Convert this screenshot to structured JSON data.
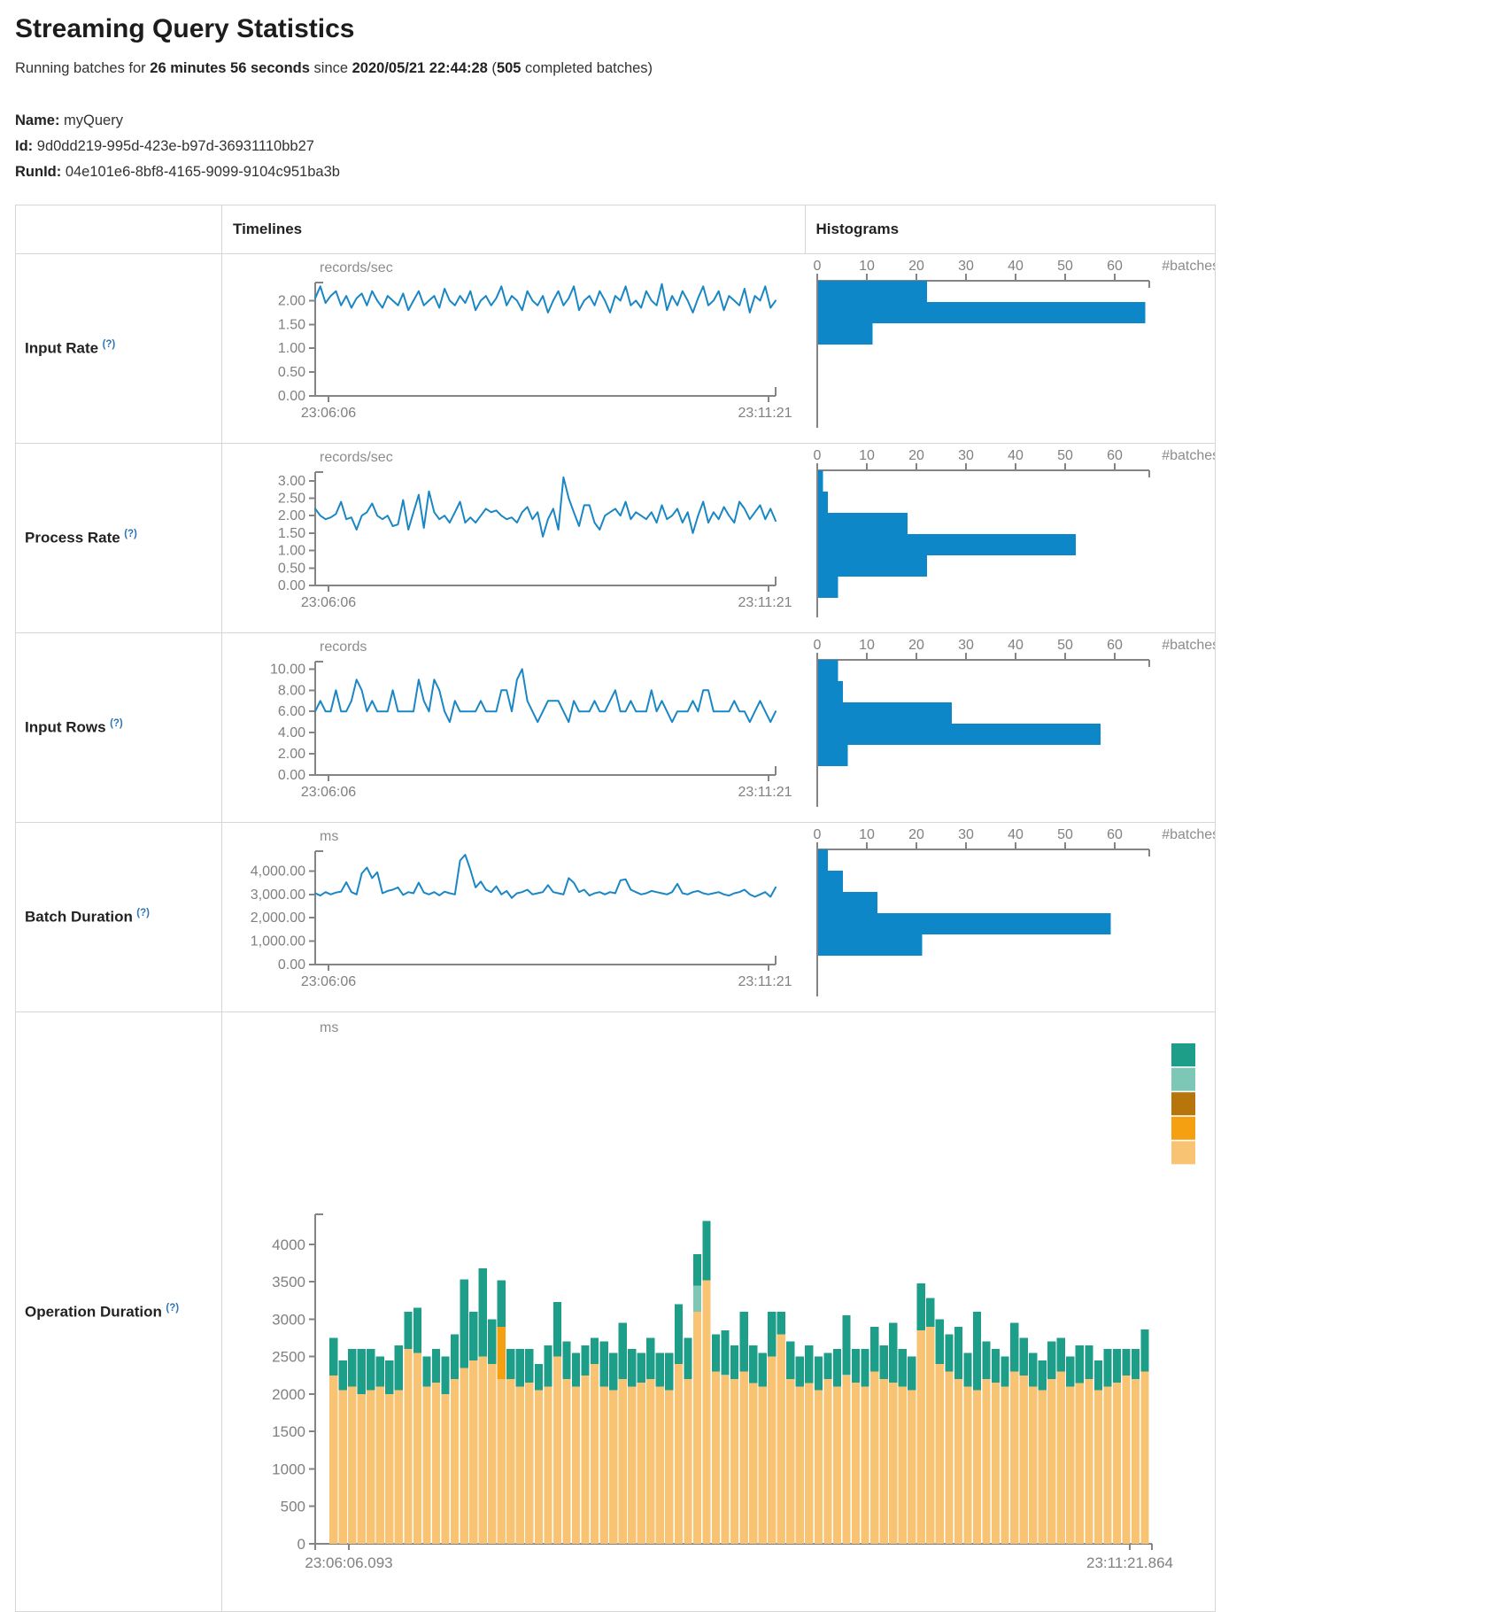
{
  "page": {
    "title": "Streaming Query Statistics",
    "subtitle": {
      "prefix": "Running batches for ",
      "duration": "26 minutes 56 seconds",
      "mid": " since ",
      "timestamp": "2020/05/21 22:44:28",
      "paren": " (",
      "batches": "505",
      "suffix": " completed batches)"
    }
  },
  "query": {
    "name_label": "Name:",
    "name": "myQuery",
    "id_label": "Id:",
    "id": "9d0dd219-995d-423e-b97d-36931110bb27",
    "runid_label": "RunId:",
    "runid": "04e101e6-8bf8-4165-9099-9104c951ba3b"
  },
  "ui": {
    "help_marker": "(?)"
  },
  "table": {
    "timelines_header": "Timelines",
    "histograms_header": "Histograms",
    "rows": [
      {
        "key": "input-rate",
        "label": "Input Rate",
        "wide": false,
        "timeline": "input_rate_timeline",
        "histogram": "input_rate_histogram"
      },
      {
        "key": "process-rate",
        "label": "Process Rate",
        "wide": false,
        "timeline": "process_rate_timeline",
        "histogram": "process_rate_histogram"
      },
      {
        "key": "input-rows",
        "label": "Input Rows",
        "wide": false,
        "timeline": "input_rows_timeline",
        "histogram": "input_rows_histogram"
      },
      {
        "key": "batch-duration",
        "label": "Batch Duration",
        "wide": false,
        "timeline": "batch_duration_timeline",
        "histogram": "batch_duration_histogram"
      },
      {
        "key": "operation-duration",
        "label": "Operation Duration",
        "wide": true,
        "chart": "operation_duration"
      }
    ]
  },
  "colors": {
    "line_blue": "#1a87c4",
    "hist_blue": "#0e87c8",
    "axis": "#848484",
    "tick_text": "#808080",
    "unit_text": "#8c8c8c",
    "border": "#d6d6d6",
    "teal": "#1d9e89",
    "light_teal": "#7cc7b6",
    "brown": "#b8750c",
    "orange": "#f5a011",
    "tan": "#f8c373"
  },
  "chart_data": {
    "input_rate_timeline": {
      "type": "line",
      "unit": "records/sec",
      "x_start": "23:06:06",
      "x_end": "23:11:21",
      "ymax": 2.38,
      "y_ticks": [
        {
          "label": "0.00",
          "v": 0
        },
        {
          "label": "0.50",
          "v": 0.5
        },
        {
          "label": "1.00",
          "v": 1
        },
        {
          "label": "1.50",
          "v": 1.5
        },
        {
          "label": "2.00",
          "v": 2
        }
      ],
      "values": [
        2.05,
        2.3,
        1.95,
        2.1,
        2.2,
        1.9,
        2.1,
        1.85,
        2.05,
        2.15,
        1.9,
        2.2,
        2.0,
        1.85,
        2.1,
        2.0,
        1.9,
        2.15,
        1.8,
        2.0,
        2.2,
        1.9,
        2.0,
        2.1,
        1.85,
        2.25,
        2.0,
        1.9,
        2.1,
        1.95,
        2.2,
        1.8,
        2.0,
        2.1,
        1.9,
        2.05,
        2.3,
        1.9,
        2.1,
        2.0,
        1.8,
        2.2,
        2.0,
        1.9,
        2.1,
        1.75,
        2.0,
        2.2,
        1.9,
        2.05,
        2.3,
        1.8,
        2.0,
        2.1,
        1.9,
        2.2,
        2.0,
        1.75,
        2.1,
        2.0,
        2.3,
        1.9,
        2.0,
        1.85,
        2.2,
        2.0,
        1.9,
        2.35,
        1.8,
        2.1,
        1.9,
        2.2,
        2.0,
        1.75,
        2.05,
        2.3,
        1.9,
        2.0,
        2.2,
        1.8,
        2.1,
        2.0,
        1.9,
        2.25,
        1.75,
        2.1,
        2.0,
        2.3,
        1.85,
        2.0
      ]
    },
    "input_rate_histogram": {
      "type": "bar",
      "end_label": "#batches",
      "axis_end": 67,
      "x_ticks": [
        {
          "label": "0",
          "v": 0
        },
        {
          "label": "10",
          "v": 10
        },
        {
          "label": "20",
          "v": 20
        },
        {
          "label": "30",
          "v": 30
        },
        {
          "label": "40",
          "v": 40
        },
        {
          "label": "50",
          "v": 50
        },
        {
          "label": "60",
          "v": 60
        }
      ],
      "values": [
        22,
        66,
        11
      ]
    },
    "process_rate_timeline": {
      "type": "line",
      "unit": "records/sec",
      "x_start": "23:06:06",
      "x_end": "23:11:21",
      "ymax": 3.25,
      "y_ticks": [
        {
          "label": "0.00",
          "v": 0
        },
        {
          "label": "0.50",
          "v": 0.5
        },
        {
          "label": "1.00",
          "v": 1
        },
        {
          "label": "1.50",
          "v": 1.5
        },
        {
          "label": "2.00",
          "v": 2
        },
        {
          "label": "2.50",
          "v": 2.5
        },
        {
          "label": "3.00",
          "v": 3
        }
      ],
      "values": [
        2.2,
        2.0,
        1.9,
        1.95,
        2.05,
        2.4,
        1.9,
        1.95,
        1.6,
        2.0,
        2.1,
        2.35,
        2.0,
        1.9,
        2.0,
        1.7,
        1.75,
        2.45,
        1.6,
        2.1,
        2.6,
        1.65,
        2.7,
        2.1,
        1.9,
        2.0,
        1.8,
        2.1,
        2.4,
        1.8,
        1.95,
        1.8,
        2.0,
        2.2,
        2.1,
        2.15,
        2.0,
        1.9,
        1.95,
        1.8,
        2.1,
        2.25,
        1.9,
        2.1,
        1.4,
        1.9,
        2.2,
        1.6,
        3.1,
        2.5,
        2.1,
        1.7,
        2.3,
        2.3,
        1.8,
        1.6,
        2.0,
        2.1,
        2.2,
        2.0,
        2.4,
        1.9,
        2.1,
        2.0,
        1.9,
        2.1,
        1.8,
        2.3,
        1.9,
        2.0,
        2.2,
        1.8,
        2.1,
        1.5,
        2.0,
        2.4,
        1.8,
        2.1,
        1.9,
        2.25,
        2.0,
        1.8,
        2.4,
        2.2,
        1.9,
        2.1,
        2.3,
        1.9,
        2.2,
        1.85
      ]
    },
    "process_rate_histogram": {
      "type": "bar",
      "end_label": "#batches",
      "axis_end": 67,
      "x_ticks": [
        {
          "label": "0",
          "v": 0
        },
        {
          "label": "10",
          "v": 10
        },
        {
          "label": "20",
          "v": 20
        },
        {
          "label": "30",
          "v": 30
        },
        {
          "label": "40",
          "v": 40
        },
        {
          "label": "50",
          "v": 50
        },
        {
          "label": "60",
          "v": 60
        }
      ],
      "values": [
        1,
        2,
        18,
        52,
        22,
        4
      ]
    },
    "input_rows_timeline": {
      "type": "line",
      "unit": "records",
      "x_start": "23:06:06",
      "x_end": "23:11:21",
      "ymax": 10.7,
      "y_ticks": [
        {
          "label": "0.00",
          "v": 0
        },
        {
          "label": "2.00",
          "v": 2
        },
        {
          "label": "4.00",
          "v": 4
        },
        {
          "label": "6.00",
          "v": 6
        },
        {
          "label": "8.00",
          "v": 8
        },
        {
          "label": "10.00",
          "v": 10
        }
      ],
      "values": [
        6,
        7,
        6,
        6,
        8,
        6,
        6,
        7,
        9,
        8,
        6,
        7,
        6,
        6,
        6,
        8,
        6,
        6,
        6,
        6,
        9,
        7,
        6,
        9,
        8,
        6,
        5,
        7,
        6,
        6,
        6,
        6,
        7,
        6,
        6,
        6,
        8,
        8,
        6,
        9,
        10,
        7,
        6,
        5,
        6,
        7,
        7,
        7,
        6,
        5,
        7,
        6,
        6,
        6,
        7,
        6,
        6,
        7,
        8,
        6,
        6,
        7,
        6,
        6,
        6,
        8,
        6,
        7,
        6,
        5,
        6,
        6,
        6,
        7,
        6,
        8,
        8,
        6,
        6,
        6,
        6,
        7,
        6,
        6,
        5,
        6,
        7,
        6,
        5,
        6
      ]
    },
    "input_rows_histogram": {
      "type": "bar",
      "end_label": "#batches",
      "axis_end": 67,
      "x_ticks": [
        {
          "label": "0",
          "v": 0
        },
        {
          "label": "10",
          "v": 10
        },
        {
          "label": "20",
          "v": 20
        },
        {
          "label": "30",
          "v": 30
        },
        {
          "label": "40",
          "v": 40
        },
        {
          "label": "50",
          "v": 50
        },
        {
          "label": "60",
          "v": 60
        }
      ],
      "values": [
        4,
        5,
        27,
        57,
        6
      ]
    },
    "batch_duration_timeline": {
      "type": "line",
      "unit": "ms",
      "x_start": "23:06:06",
      "x_end": "23:11:21",
      "ymax": 4850,
      "y_ticks": [
        {
          "label": "0.00",
          "v": 0
        },
        {
          "label": "1,000.00",
          "v": 1000
        },
        {
          "label": "2,000.00",
          "v": 2000
        },
        {
          "label": "3,000.00",
          "v": 3000
        },
        {
          "label": "4,000.00",
          "v": 4000
        }
      ],
      "values": [
        3050,
        2950,
        3100,
        3000,
        3080,
        3120,
        3520,
        3100,
        3000,
        3900,
        4150,
        3700,
        3950,
        3050,
        3150,
        3200,
        3300,
        2980,
        3100,
        3050,
        3500,
        3080,
        3000,
        3100,
        2960,
        3120,
        3050,
        3000,
        4450,
        4700,
        4050,
        3300,
        3550,
        3200,
        3100,
        3350,
        3000,
        3150,
        2850,
        3050,
        3100,
        3200,
        3000,
        3050,
        3100,
        3400,
        3100,
        3050,
        3000,
        3700,
        3500,
        3100,
        3200,
        2950,
        3050,
        3100,
        3000,
        3100,
        3050,
        3600,
        3650,
        3200,
        3100,
        3000,
        3050,
        3150,
        3100,
        3050,
        3000,
        3100,
        3450,
        3050,
        3000,
        3100,
        3150,
        3050,
        3000,
        3050,
        3100,
        3000,
        2950,
        3050,
        3100,
        3200,
        3000,
        2900,
        3000,
        3100,
        2900,
        3300
      ]
    },
    "batch_duration_histogram": {
      "type": "bar",
      "end_label": "#batches",
      "axis_end": 67,
      "x_ticks": [
        {
          "label": "0",
          "v": 0
        },
        {
          "label": "10",
          "v": 10
        },
        {
          "label": "20",
          "v": 20
        },
        {
          "label": "30",
          "v": 30
        },
        {
          "label": "40",
          "v": 40
        },
        {
          "label": "50",
          "v": 50
        },
        {
          "label": "60",
          "v": 60
        }
      ],
      "values": [
        2,
        5,
        12,
        59,
        21
      ]
    },
    "operation_duration": {
      "type": "stacked_bar",
      "unit": "ms",
      "x_start": "23:06:06.093",
      "x_end": "23:11:21.864",
      "ymax": 4400,
      "y_ticks": [
        {
          "label": "0",
          "v": 0
        },
        {
          "label": "500",
          "v": 500
        },
        {
          "label": "1000",
          "v": 1000
        },
        {
          "label": "1500",
          "v": 1500
        },
        {
          "label": "2000",
          "v": 2000
        },
        {
          "label": "2500",
          "v": 2500
        },
        {
          "label": "3000",
          "v": 3000
        },
        {
          "label": "3500",
          "v": 3500
        },
        {
          "label": "4000",
          "v": 4000
        }
      ],
      "legend_colors": [
        "#1d9e89",
        "#7cc7b6",
        "#b8750c",
        "#f5a011",
        "#f8c373"
      ],
      "series": [
        {
          "color": "#f8c373",
          "values": [
            2250,
            2050,
            2100,
            2000,
            2050,
            2100,
            2000,
            2050,
            2600,
            2550,
            2100,
            2150,
            2000,
            2200,
            2350,
            2450,
            2500,
            2400,
            2200,
            2200,
            2100,
            2150,
            2050,
            2100,
            2500,
            2200,
            2100,
            2250,
            2400,
            2100,
            2050,
            2200,
            2100,
            2150,
            2200,
            2100,
            2050,
            2400,
            2200,
            3100,
            3520,
            2300,
            2250,
            2200,
            2300,
            2150,
            2100,
            2500,
            2800,
            2200,
            2100,
            2150,
            2050,
            2200,
            2100,
            2250,
            2150,
            2100,
            2300,
            2200,
            2150,
            2100,
            2050,
            2850,
            2900,
            2400,
            2300,
            2200,
            2100,
            2050,
            2200,
            2150,
            2100,
            2300,
            2250,
            2100,
            2050,
            2200,
            2300,
            2100,
            2150,
            2200,
            2050,
            2100,
            2150,
            2250,
            2200,
            2300
          ]
        },
        {
          "color": "#f5a011",
          "values": [
            0,
            0,
            0,
            0,
            0,
            0,
            0,
            0,
            0,
            0,
            0,
            0,
            0,
            0,
            0,
            0,
            0,
            0,
            700,
            0,
            0,
            0,
            0,
            0,
            0,
            0,
            0,
            0,
            0,
            0,
            0,
            0,
            0,
            0,
            0,
            0,
            0,
            0,
            0,
            0,
            0,
            0,
            0,
            0,
            0,
            0,
            0,
            0,
            0,
            0,
            0,
            0,
            0,
            0,
            0,
            0,
            0,
            0,
            0,
            0,
            0,
            0,
            0,
            0,
            0,
            0,
            0,
            0,
            0,
            0,
            0,
            0,
            0,
            0,
            0,
            0,
            0,
            0,
            0,
            0,
            0,
            0,
            0,
            0,
            0,
            0,
            0,
            0
          ]
        },
        {
          "color": "#7cc7b6",
          "values": [
            0,
            0,
            0,
            0,
            0,
            0,
            0,
            0,
            0,
            0,
            0,
            0,
            0,
            0,
            0,
            0,
            0,
            0,
            0,
            0,
            0,
            0,
            0,
            0,
            0,
            0,
            0,
            0,
            0,
            0,
            0,
            0,
            0,
            0,
            0,
            0,
            0,
            0,
            0,
            350,
            0,
            0,
            0,
            0,
            0,
            0,
            0,
            0,
            0,
            0,
            0,
            0,
            0,
            0,
            0,
            0,
            0,
            0,
            0,
            0,
            0,
            0,
            0,
            0,
            0,
            0,
            0,
            0,
            0,
            0,
            0,
            0,
            0,
            0,
            0,
            0,
            0,
            0,
            0,
            0,
            0,
            0,
            0,
            0,
            0,
            0,
            0,
            0
          ]
        },
        {
          "color": "#1d9e89",
          "values": [
            500,
            400,
            500,
            600,
            550,
            400,
            450,
            600,
            500,
            600,
            400,
            450,
            500,
            600,
            1180,
            650,
            1180,
            600,
            620,
            400,
            500,
            450,
            350,
            550,
            730,
            500,
            450,
            400,
            350,
            600,
            500,
            750,
            500,
            400,
            550,
            450,
            500,
            800,
            550,
            420,
            790,
            500,
            600,
            450,
            800,
            500,
            450,
            600,
            300,
            500,
            400,
            500,
            450,
            350,
            500,
            800,
            450,
            500,
            600,
            450,
            800,
            500,
            450,
            630,
            380,
            600,
            500,
            700,
            450,
            1050,
            500,
            450,
            400,
            650,
            500,
            450,
            400,
            500,
            450,
            400,
            500,
            450,
            400,
            500,
            450,
            350,
            400,
            560
          ]
        }
      ]
    }
  }
}
